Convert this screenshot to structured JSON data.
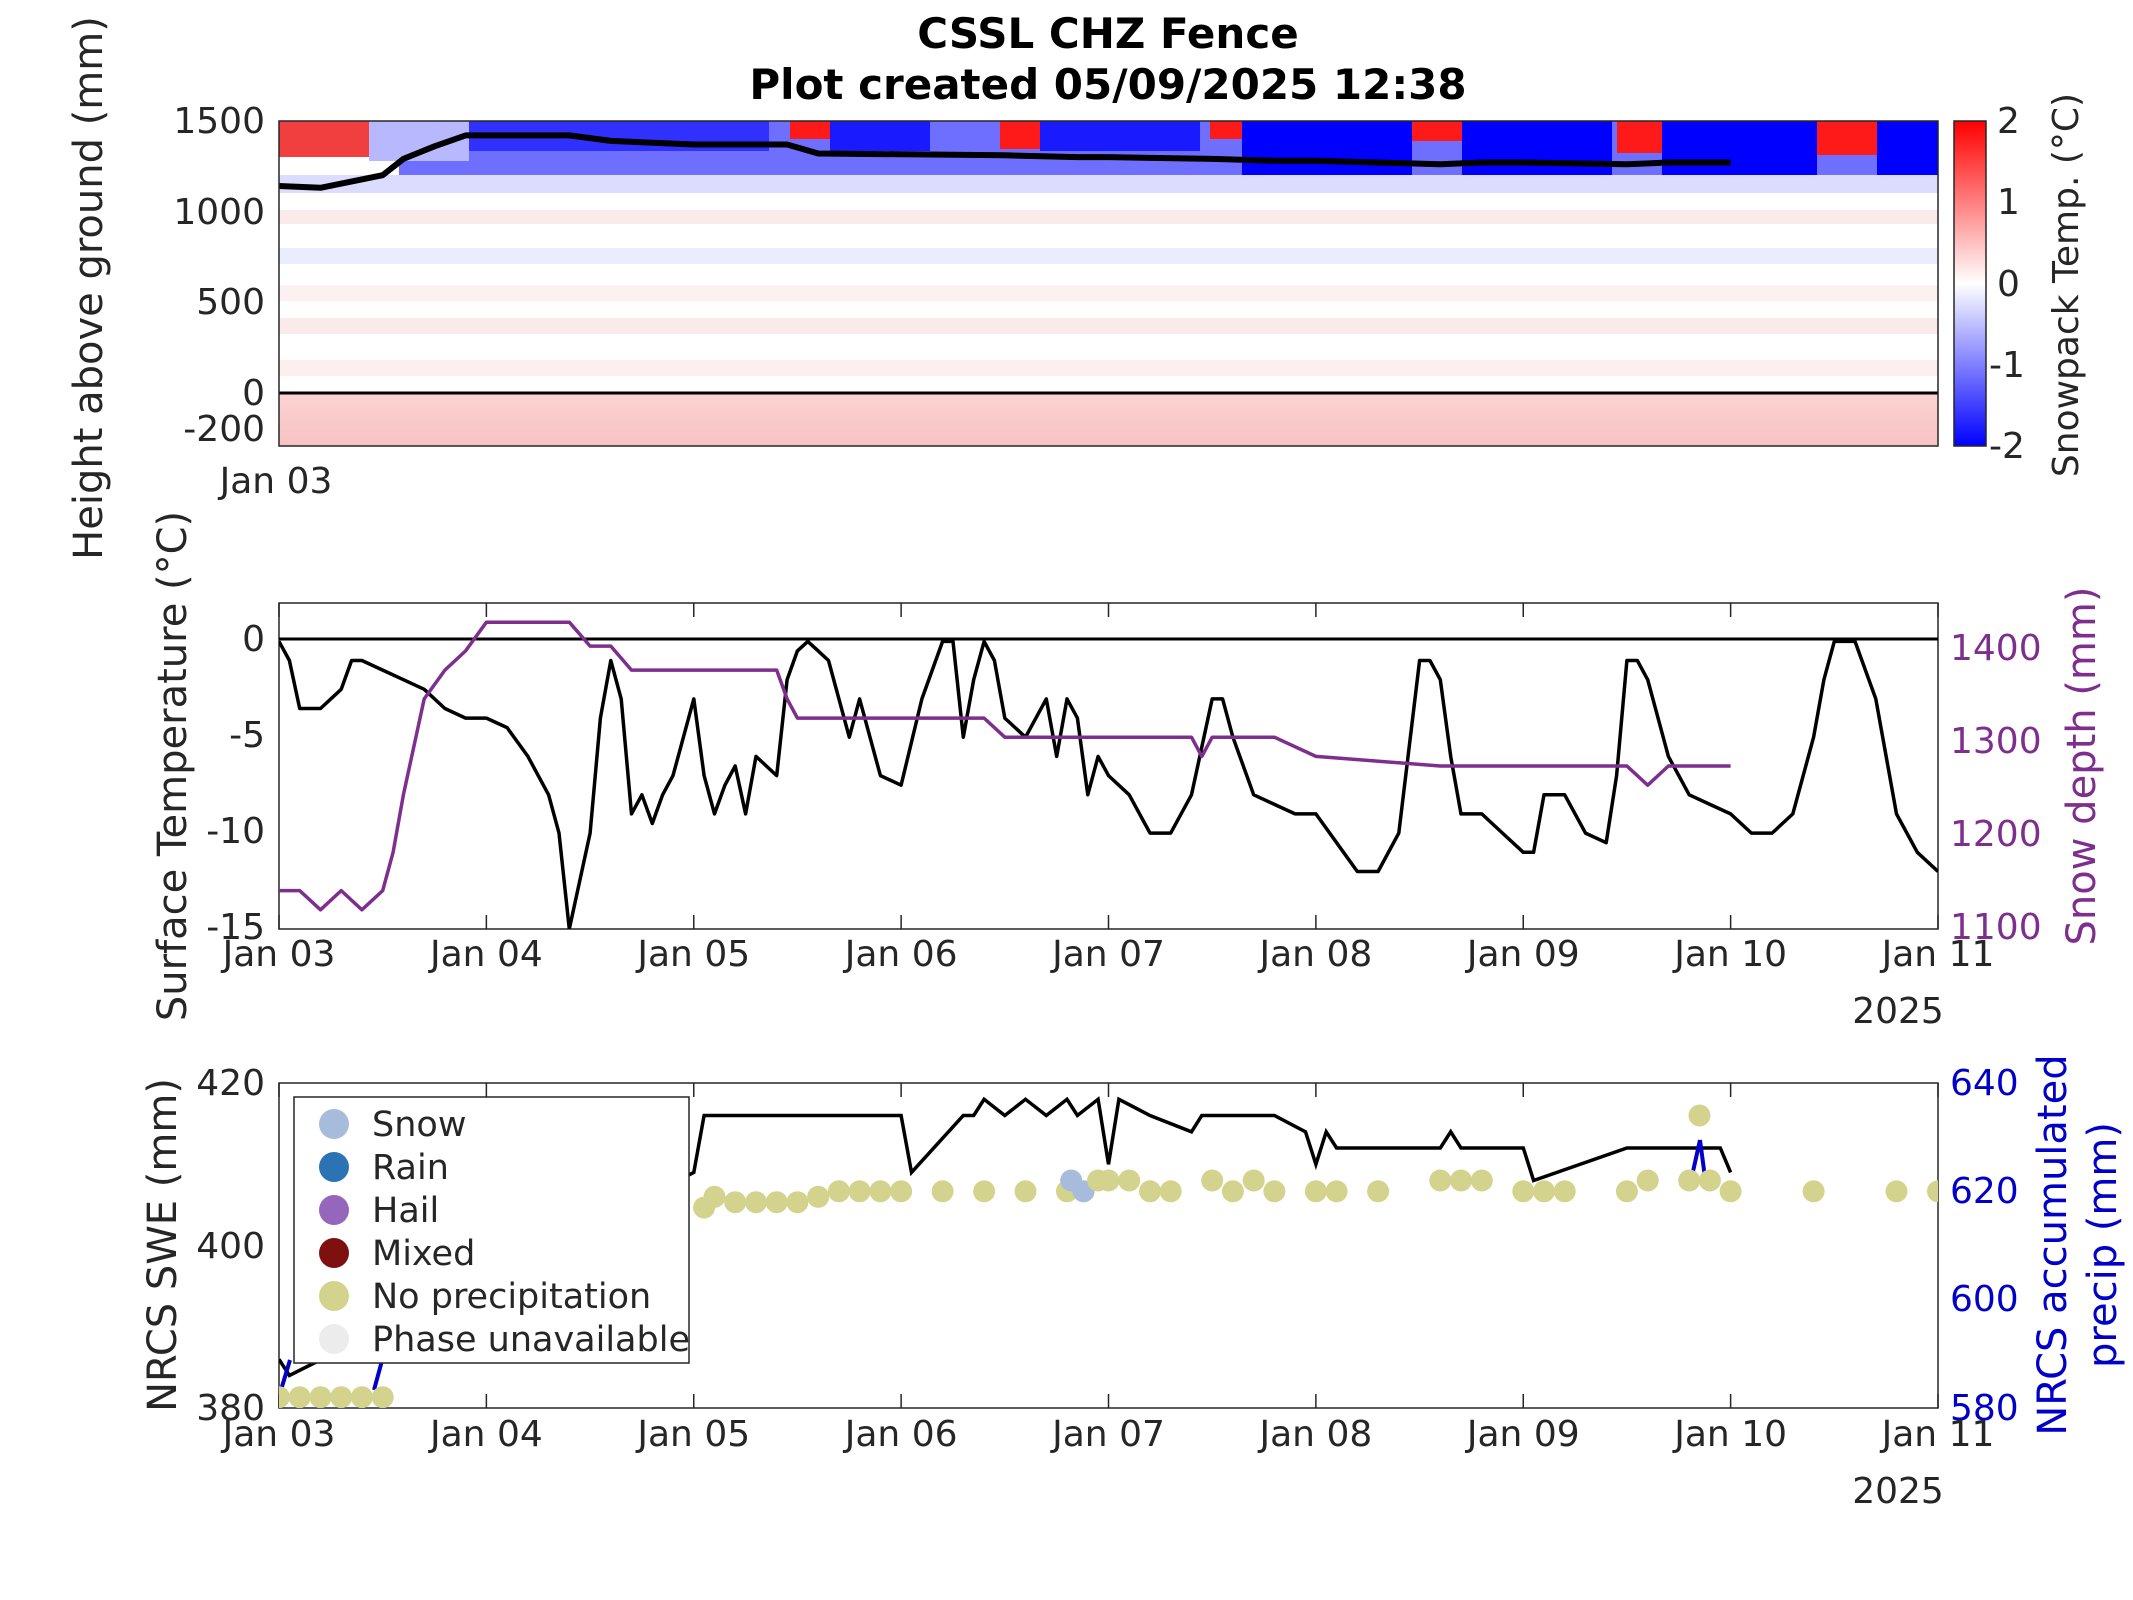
{
  "figure": {
    "title_line1": "CSSL CHZ Fence",
    "title_line2": "Plot created 05/09/2025 12:38"
  },
  "colors": {
    "black": "#000000",
    "purple": "#7e2f8e",
    "blue_axis": "#0000c8",
    "snow": "#a7bcdc",
    "rain": "#2b73b3",
    "hail": "#9467bd",
    "mixed": "#7f1010",
    "no_precip": "#d4d38d",
    "phase_unavailable": "#ececec"
  },
  "chart_data": [
    {
      "type": "heatmap",
      "ylabel": "Height above ground (mm)",
      "colorbar_label": "Snowpack Temp. (°C)",
      "colorbar_ticks": [
        "2",
        "1",
        "0",
        "-1",
        "-2"
      ],
      "clim": [
        -2,
        2
      ],
      "ylim": [
        -300,
        1500
      ],
      "yticks": [
        "1500",
        "1000",
        "500",
        "0",
        "-200"
      ],
      "xtick_labels": [
        "Jan 03"
      ],
      "snow_depth_overlay": {
        "x": [
          3.0,
          3.2,
          3.5,
          3.6,
          3.75,
          3.9,
          4.4,
          4.6,
          5.0,
          5.45,
          5.6,
          6.5,
          6.85,
          7.0,
          7.5,
          7.8,
          8.0,
          8.6,
          8.8,
          9.0,
          9.5,
          9.7,
          10.0
        ],
        "y": [
          1140,
          1130,
          1200,
          1290,
          1360,
          1420,
          1420,
          1390,
          1370,
          1370,
          1320,
          1310,
          1300,
          1300,
          1290,
          1280,
          1280,
          1260,
          1270,
          1270,
          1260,
          1270,
          1270
        ]
      }
    },
    {
      "type": "line",
      "ylabel": "Surface Temperature (°C)",
      "ylabel_right": "Snow depth (mm)",
      "ylim": [
        -15,
        2
      ],
      "ylim_right": [
        1100,
        1440
      ],
      "yticks": [
        "0",
        "-5",
        "-10",
        "-15"
      ],
      "yticks_right": [
        "1400",
        "1300",
        "1200",
        "1100"
      ],
      "xtick_labels": [
        "Jan 03",
        "Jan 04",
        "Jan 05",
        "Jan 06",
        "Jan 07",
        "Jan 08",
        "Jan 09",
        "Jan 10",
        "Jan 11"
      ],
      "year_label": "2025",
      "series": [
        {
          "x": [
            3.0,
            3.05,
            3.1,
            3.2,
            3.3,
            3.35,
            3.4,
            3.5,
            3.6,
            3.7,
            3.8,
            3.9,
            4.0,
            4.1,
            4.2,
            4.25,
            4.3,
            4.35,
            4.4,
            4.5,
            4.55,
            4.6,
            4.65,
            4.7,
            4.75,
            4.8,
            4.85,
            4.9,
            5.0,
            5.05,
            5.1,
            5.15,
            5.2,
            5.25,
            5.3,
            5.4,
            5.45,
            5.5,
            5.55,
            5.6,
            5.65,
            5.75,
            5.8,
            5.9,
            6.0,
            6.1,
            6.2,
            6.25,
            6.3,
            6.35,
            6.4,
            6.45,
            6.5,
            6.6,
            6.7,
            6.75,
            6.8,
            6.85,
            6.9,
            6.95,
            7.0,
            7.1,
            7.2,
            7.3,
            7.4,
            7.5,
            7.55,
            7.6,
            7.7,
            7.8,
            7.9,
            8.0,
            8.1,
            8.2,
            8.3,
            8.4,
            8.5,
            8.55,
            8.6,
            8.65,
            8.7,
            8.8,
            8.9,
            9.0,
            9.05,
            9.1,
            9.2,
            9.3,
            9.4,
            9.45,
            9.5,
            9.55,
            9.6,
            9.7,
            9.8,
            9.9,
            10.0,
            10.1,
            10.2,
            10.3,
            10.4,
            10.45,
            10.5,
            10.55,
            10.6,
            10.7,
            10.8,
            10.9,
            11.0
          ],
          "y": [
            0,
            -1,
            -3.5,
            -3.5,
            -2.5,
            -1,
            -1,
            -1.5,
            -2,
            -2.5,
            -3.5,
            -4,
            -4,
            -4.5,
            -6,
            -7,
            -8,
            -10,
            -15,
            -10,
            -4,
            -1,
            -3,
            -9,
            -8,
            -9.5,
            -8,
            -7,
            -3,
            -7,
            -9,
            -7.5,
            -6.5,
            -9,
            -6,
            -7,
            -2,
            -0.5,
            0,
            -0.5,
            -1,
            -5,
            -3,
            -7,
            -7.5,
            -3,
            0,
            0,
            -5,
            -2,
            0,
            -1,
            -4,
            -5,
            -3,
            -6,
            -3,
            -4,
            -8,
            -6,
            -7,
            -8,
            -10,
            -10,
            -8,
            -3,
            -3,
            -5,
            -8,
            -8.5,
            -9,
            -9,
            -10.5,
            -12,
            -12,
            -10,
            -1,
            -1,
            -2,
            -6,
            -9,
            -9,
            -10,
            -11,
            -11,
            -8,
            -8,
            -10,
            -10.5,
            -7,
            -1,
            -1,
            -2,
            -6,
            -8,
            -8.5,
            -9,
            -10,
            -10,
            -9,
            -5,
            -2,
            0,
            0,
            0,
            -3,
            -9,
            -11,
            -12
          ]
        },
        {
          "name": "Snow depth",
          "x": [
            3.0,
            3.1,
            3.2,
            3.3,
            3.4,
            3.5,
            3.55,
            3.6,
            3.7,
            3.8,
            3.9,
            4.0,
            4.1,
            4.2,
            4.4,
            4.5,
            4.6,
            4.7,
            4.8,
            5.0,
            5.2,
            5.4,
            5.45,
            5.5,
            5.6,
            5.7,
            6.0,
            6.4,
            6.5,
            6.8,
            7.0,
            7.4,
            7.45,
            7.5,
            7.8,
            8.0,
            8.6,
            8.7,
            9.0,
            9.5,
            9.6,
            9.7,
            10.0
          ],
          "y": [
            1140,
            1140,
            1120,
            1140,
            1120,
            1140,
            1180,
            1240,
            1340,
            1370,
            1390,
            1420,
            1420,
            1420,
            1420,
            1395,
            1395,
            1370,
            1370,
            1370,
            1370,
            1370,
            1340,
            1320,
            1320,
            1320,
            1320,
            1320,
            1300,
            1300,
            1300,
            1300,
            1280,
            1300,
            1300,
            1280,
            1270,
            1270,
            1270,
            1270,
            1250,
            1270,
            1270
          ]
        }
      ]
    },
    {
      "type": "scatter",
      "ylabel": "NRCS SWE (mm)",
      "ylabel_right": "NRCS accumulated precip (mm)",
      "ylim": [
        380,
        420
      ],
      "ylim_right": [
        580,
        640
      ],
      "yticks": [
        "420",
        "400",
        "380"
      ],
      "yticks_right": [
        "640",
        "620",
        "600",
        "580"
      ],
      "xtick_labels": [
        "Jan 03",
        "Jan 04",
        "Jan 05",
        "Jan 06",
        "Jan 07",
        "Jan 08",
        "Jan 09",
        "Jan 10",
        "Jan 11"
      ],
      "year_label": "2025",
      "legend": [
        "Snow",
        "Rain",
        "Hail",
        "Mixed",
        "No precipitation",
        "Phase unavailable"
      ],
      "legend_position": "top-left",
      "swe_line": {
        "x": [
          3.0,
          3.05,
          5.0,
          5.05,
          6.0,
          6.05,
          6.3,
          6.35,
          6.4,
          6.5,
          6.6,
          6.7,
          6.8,
          6.85,
          6.95,
          7.0,
          7.05,
          7.2,
          7.4,
          7.45,
          7.5,
          7.6,
          7.8,
          7.95,
          8.0,
          8.05,
          8.1,
          8.6,
          8.65,
          8.7,
          9.0,
          9.05,
          9.5,
          9.55,
          9.8,
          9.85,
          9.9,
          9.95,
          10.0
        ],
        "y": [
          386,
          384,
          409,
          416,
          416,
          409,
          416,
          416,
          418,
          416,
          418,
          416,
          418,
          416,
          418,
          410,
          418,
          416,
          414,
          416,
          416,
          416,
          416,
          414,
          410,
          414,
          412,
          412,
          414,
          412,
          412,
          408,
          412,
          412,
          412,
          412,
          412,
          412,
          409
        ]
      },
      "precip_points": [
        {
          "x": [
            3.0,
            3.1,
            3.2,
            3.3,
            3.4,
            3.5
          ],
          "y": [
            582,
            582,
            582,
            582,
            582,
            582
          ],
          "phase": "No precipitation"
        },
        {
          "x": [
            5.05,
            5.1,
            5.2,
            5.3,
            5.4,
            5.5,
            5.6,
            5.7,
            5.8,
            5.9,
            6.0,
            6.2,
            6.4,
            6.6,
            6.8
          ],
          "y": [
            617,
            619,
            618,
            618,
            618,
            618,
            619,
            620,
            620,
            620,
            620,
            620,
            620,
            620,
            620
          ],
          "phase": "No precipitation"
        },
        {
          "x": [
            6.82,
            6.88
          ],
          "y": [
            622,
            620
          ],
          "phase": "Snow"
        },
        {
          "x": [
            6.95,
            7.0,
            7.1,
            7.2,
            7.3,
            7.5,
            7.6,
            7.7,
            7.8,
            8.0,
            8.1,
            8.3,
            8.6,
            8.7,
            8.8,
            9.0,
            9.1,
            9.2,
            9.5,
            9.6,
            9.8,
            9.9,
            10.0,
            10.4,
            10.8,
            11.0
          ],
          "y": [
            622,
            622,
            622,
            620,
            620,
            622,
            620,
            622,
            620,
            620,
            620,
            620,
            622,
            622,
            622,
            620,
            620,
            620,
            620,
            622,
            622,
            622,
            620,
            620,
            620,
            620
          ],
          "phase": "No precipitation"
        },
        {
          "x": [
            9.85
          ],
          "y": [
            634
          ],
          "phase": "No precipitation"
        }
      ]
    }
  ]
}
